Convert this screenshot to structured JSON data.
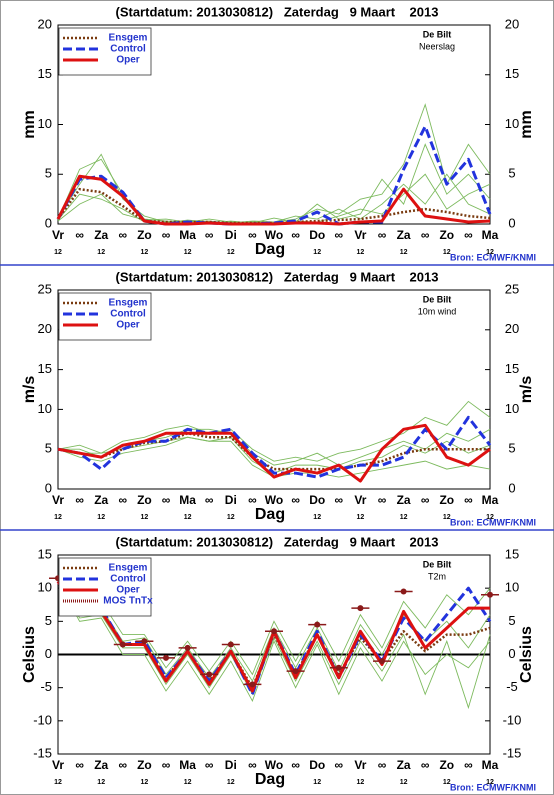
{
  "chart_data": [
    {
      "type": "line",
      "title": "(Startdatum: 2013030812)   Zaterdag   9 Maart    2013",
      "station": "De Bilt",
      "variable": "Neerslag",
      "ylabel": "mm",
      "y2label": "mm",
      "xlabel": "Dag",
      "source": "Bron: ECMWF/KNMI",
      "categories": [
        "Vr",
        "∞",
        "Za",
        "∞",
        "Zo",
        "∞",
        "Ma",
        "∞",
        "Di",
        "∞",
        "Wo",
        "∞",
        "Do",
        "∞",
        "Vr",
        "∞",
        "Za",
        "∞",
        "Zo",
        "∞",
        "Ma"
      ],
      "sublabels": [
        "12",
        null,
        "12",
        null,
        "12",
        null,
        "12",
        null,
        "12",
        null,
        null,
        null,
        "12",
        null,
        "12",
        null,
        "12",
        null,
        "12",
        null,
        "12"
      ],
      "ylim": [
        0,
        20
      ],
      "yticks": [
        0,
        5,
        10,
        15,
        20
      ],
      "zero_line": false,
      "member_color": "#7dba5e",
      "members": [
        [
          0.5,
          5.5,
          6.5,
          3,
          0.5,
          0.3,
          0.2,
          0.5,
          0.2,
          0.1,
          0.2,
          0.5,
          1.5,
          1,
          2.5,
          3,
          6,
          12,
          4,
          8,
          5
        ],
        [
          0.4,
          3,
          2.5,
          1.5,
          0.2,
          0.1,
          0.4,
          0.2,
          0.1,
          0.3,
          0.2,
          0.8,
          0.5,
          1.5,
          0.5,
          2,
          4,
          2,
          5,
          2,
          1
        ],
        [
          0.6,
          4,
          7,
          2.5,
          0.8,
          0.2,
          0.1,
          0.1,
          0.3,
          0.1,
          0.6,
          0.2,
          2,
          0.5,
          1,
          4.5,
          2,
          8,
          3,
          5,
          2.5
        ],
        [
          0.3,
          2,
          3,
          1,
          0.4,
          0.5,
          0.2,
          0.3,
          0.1,
          0.2,
          0.1,
          0.3,
          0.2,
          0.8,
          1.5,
          1,
          3,
          5,
          1.5,
          3,
          4
        ]
      ],
      "series": [
        {
          "name": "Ensgem",
          "color": "#7a3b10",
          "dash": "dotted",
          "values": [
            0.5,
            3.5,
            3.2,
            1.8,
            0.3,
            0.2,
            0.2,
            0.2,
            0.1,
            0.1,
            0.1,
            0.2,
            0.3,
            0.4,
            0.5,
            0.8,
            1.2,
            1.5,
            1.2,
            0.8,
            0.6
          ]
        },
        {
          "name": "Control",
          "color": "#2233dd",
          "dash": "dashed",
          "values": [
            0.5,
            4.5,
            4.8,
            3.2,
            0.3,
            0,
            0.2,
            0.1,
            0,
            0,
            0.1,
            0.3,
            1.2,
            0,
            0.2,
            0.2,
            5.5,
            9.8,
            4,
            6.5,
            1
          ]
        },
        {
          "name": "Oper",
          "color": "#dd1111",
          "dash": "solid",
          "values": [
            0.5,
            4.8,
            4.5,
            2.8,
            0.3,
            0,
            0,
            0.1,
            0,
            0,
            0,
            0.1,
            0.1,
            0,
            0.2,
            0.3,
            3.5,
            0.8,
            0.5,
            0.2,
            0.3
          ]
        }
      ]
    },
    {
      "type": "line",
      "title": "(Startdatum: 2013030812)   Zaterdag   9 Maart    2013",
      "station": "De Bilt",
      "variable": "10m wind",
      "ylabel": "m/s",
      "y2label": "m/s",
      "xlabel": "Dag",
      "source": "Bron: ECMWF/KNMI",
      "categories": [
        "Vr",
        "∞",
        "Za",
        "∞",
        "Zo",
        "∞",
        "Ma",
        "∞",
        "Di",
        "∞",
        "Wo",
        "∞",
        "Do",
        "∞",
        "Vr",
        "∞",
        "Za",
        "∞",
        "Zo",
        "∞",
        "Ma"
      ],
      "sublabels": [
        "12",
        null,
        "12",
        null,
        "12",
        null,
        "12",
        null,
        "12",
        null,
        null,
        null,
        "12",
        null,
        "12",
        null,
        "12",
        null,
        "12",
        null,
        "12"
      ],
      "ylim": [
        0,
        25
      ],
      "yticks": [
        0,
        5,
        10,
        15,
        20,
        25
      ],
      "zero_line": false,
      "member_color": "#7dba5e",
      "members": [
        [
          5,
          5.5,
          4.5,
          6,
          6.5,
          7.5,
          8,
          7,
          7.5,
          5,
          3.5,
          4,
          3.5,
          4.5,
          5,
          6,
          7,
          9,
          8,
          11,
          9
        ],
        [
          5,
          4,
          3.5,
          4.5,
          5,
          5.5,
          6.5,
          6,
          6,
          3,
          1.5,
          2,
          2,
          1.5,
          2,
          2.5,
          3,
          3.5,
          2.5,
          3,
          2.5
        ],
        [
          5,
          5,
          4,
          5.5,
          6,
          6.5,
          7.5,
          7.5,
          7,
          4.5,
          3,
          3.5,
          4.5,
          3,
          4,
          5,
          6,
          5,
          7,
          6,
          7.5
        ],
        [
          5,
          4.5,
          4.5,
          5,
          5.5,
          6,
          6.5,
          6,
          6.5,
          3.5,
          2,
          3,
          3,
          2.5,
          3.5,
          4,
          5.5,
          4.5,
          6,
          4.5,
          5.5
        ]
      ],
      "series": [
        {
          "name": "Ensgem",
          "color": "#7a3b10",
          "dash": "dotted",
          "values": [
            5,
            4.5,
            4,
            5,
            5.8,
            6,
            7,
            6.5,
            6.5,
            4,
            2.5,
            2.5,
            2.5,
            2.5,
            3,
            3.5,
            4.5,
            5,
            5,
            5,
            5
          ]
        },
        {
          "name": "Control",
          "color": "#2233dd",
          "dash": "dashed",
          "values": [
            5,
            4.5,
            2.5,
            5,
            6,
            6,
            7.5,
            7,
            7.5,
            4.5,
            2,
            2,
            1.5,
            2.5,
            3,
            3,
            4,
            7.5,
            5,
            9,
            5.5
          ]
        },
        {
          "name": "Oper",
          "color": "#dd1111",
          "dash": "solid",
          "values": [
            5,
            4.5,
            4,
            5.5,
            6,
            7,
            7,
            7,
            7,
            4,
            1.5,
            2.5,
            2,
            3,
            1,
            5,
            7.5,
            8,
            4,
            3,
            5
          ]
        }
      ]
    },
    {
      "type": "line",
      "title": "(Startdatum: 2013030812)   Zaterdag   9 Maart    2013",
      "station": "De Bilt",
      "variable": "T2m",
      "ylabel": "Celsius",
      "y2label": "Celsius",
      "xlabel": "Dag",
      "source": "Bron: ECMWF/KNMI",
      "categories": [
        "Vr",
        "∞",
        "Za",
        "∞",
        "Zo",
        "∞",
        "Ma",
        "∞",
        "Di",
        "∞",
        "Wo",
        "∞",
        "Do",
        "∞",
        "Vr",
        "∞",
        "Za",
        "∞",
        "Zo",
        "∞",
        "Ma"
      ],
      "sublabels": [
        "12",
        null,
        "12",
        null,
        "12",
        null,
        "12",
        null,
        "12",
        null,
        null,
        null,
        "12",
        null,
        "12",
        null,
        "12",
        null,
        "12",
        null,
        "12"
      ],
      "ylim": [
        -15,
        15
      ],
      "yticks": [
        -15,
        -10,
        -5,
        0,
        5,
        10,
        15
      ],
      "zero_line": true,
      "member_color": "#7dba5e",
      "members": [
        [
          11,
          7,
          8,
          3,
          3,
          -2,
          2,
          -2.5,
          2,
          -3,
          5,
          -1,
          5,
          -1,
          6,
          1,
          8,
          4,
          9,
          6,
          10
        ],
        [
          11,
          5,
          5.5,
          0,
          0,
          -5.5,
          -1,
          -6,
          -1,
          -7,
          2,
          -5,
          1.5,
          -6,
          1,
          -4,
          2,
          -3,
          0,
          -2,
          2
        ],
        [
          11,
          6.5,
          7,
          2,
          2.5,
          -3,
          1,
          -3.5,
          1,
          -4,
          4,
          -2,
          4,
          -2.5,
          4.5,
          0,
          6,
          2,
          5,
          1,
          6
        ],
        [
          11,
          5.5,
          6,
          1,
          1,
          -4.5,
          0,
          -5,
          0,
          -6,
          2.5,
          -4,
          2,
          -4.5,
          2,
          -2.5,
          3,
          -6,
          2,
          -8,
          3
        ]
      ],
      "series": [
        {
          "name": "Ensgem",
          "color": "#7a3b10",
          "dash": "dotted",
          "values": [
            11,
            6,
            6.5,
            1.5,
            1.5,
            -3.5,
            0.5,
            -4,
            0.5,
            -5,
            3,
            -3,
            3,
            -3,
            2.5,
            -1,
            3.5,
            0.5,
            3,
            3,
            4
          ]
        },
        {
          "name": "Control",
          "color": "#2233dd",
          "dash": "dashed",
          "values": [
            11,
            6,
            7,
            1.5,
            2,
            -3.5,
            0.5,
            -4,
            0.5,
            -6,
            3.5,
            -3,
            3.5,
            -3.5,
            3,
            -1,
            5.5,
            2,
            6,
            10,
            5
          ]
        },
        {
          "name": "Oper",
          "color": "#dd1111",
          "dash": "solid",
          "values": [
            11,
            6,
            6.5,
            1.5,
            1.5,
            -4,
            0.5,
            -4.5,
            0.5,
            -5.5,
            3.5,
            -3.5,
            3,
            -3.5,
            3.5,
            -1.5,
            6.5,
            1,
            4,
            7,
            7
          ]
        },
        {
          "name": "MOS TnTx",
          "color": "#8b1a1a",
          "dash": "marker",
          "values": [
            11.5,
            null,
            null,
            1.5,
            2,
            -0.5,
            1,
            -3,
            1.5,
            -4.5,
            3.5,
            -2.5,
            4.5,
            -2,
            7,
            -1,
            9.5,
            null,
            null,
            null,
            9
          ]
        }
      ]
    }
  ]
}
